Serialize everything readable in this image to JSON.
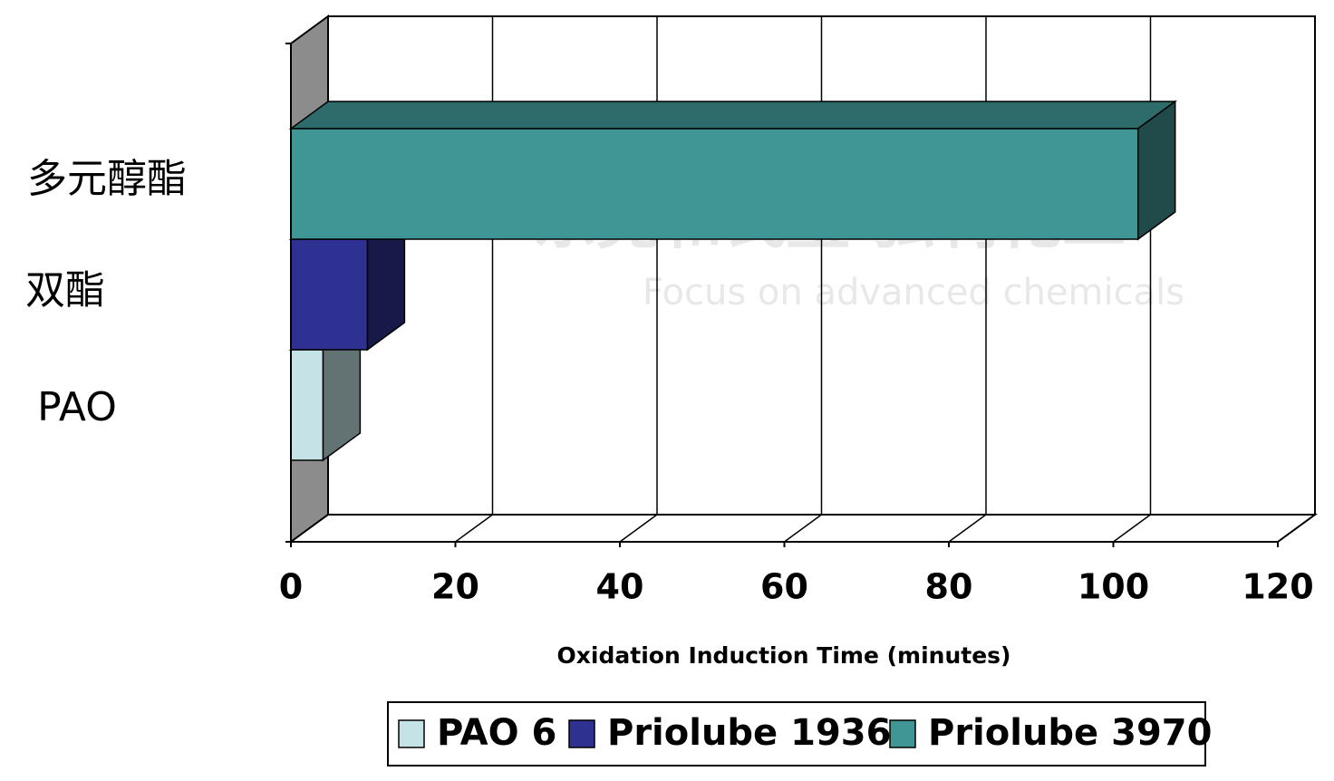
{
  "chart_data": {
    "type": "bar3d_horizontal",
    "categories": [
      "多元醇酯",
      "双酯",
      "PAO"
    ],
    "series": [
      {
        "name": "PAO 6",
        "color": "#c5e3e6",
        "values": [
          null,
          null,
          3.9
        ]
      },
      {
        "name": "Priolube 1936",
        "color": "#2e3192",
        "values": [
          null,
          9.3,
          null
        ]
      },
      {
        "name": "Priolube 3970",
        "color": "#3f9694",
        "values": [
          103,
          null,
          null
        ]
      }
    ],
    "x_label": "Oxidation Induction Time (minutes)",
    "xlim": [
      0,
      120
    ],
    "xticks": [
      0,
      20,
      40,
      60,
      80,
      100,
      120
    ],
    "grid": true,
    "legend": "bottom",
    "watermark": [
      "东莞和氏璧  弘利化工",
      "Focus on advanced chemicals"
    ]
  }
}
